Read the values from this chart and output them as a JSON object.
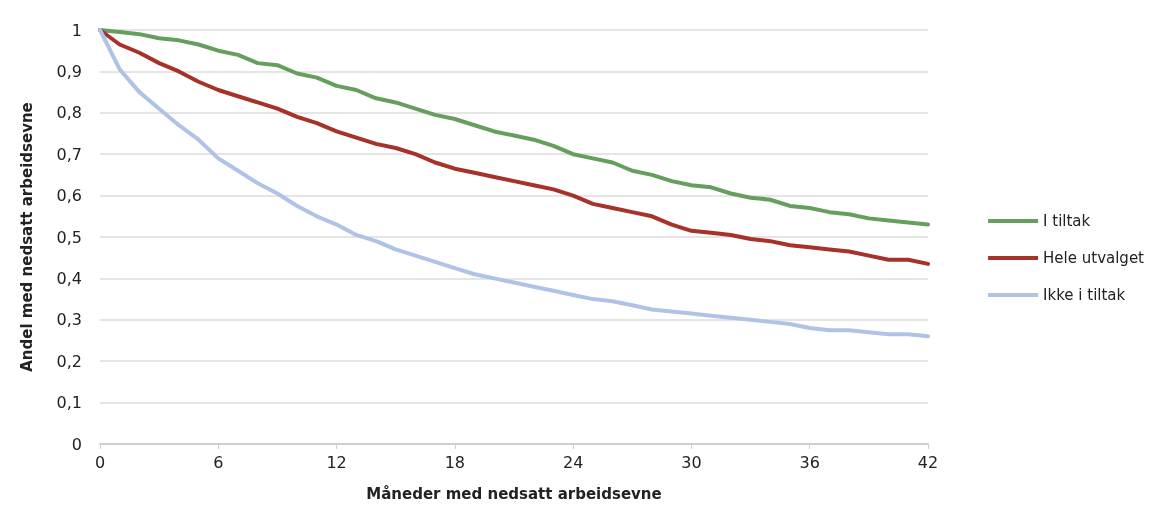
{
  "chart_data": {
    "type": "line",
    "xlabel": "Måneder med nedsatt arbeidsevne",
    "ylabel": "Andel med nedsatt arbeidsevne",
    "x": [
      0,
      1,
      2,
      3,
      4,
      5,
      6,
      7,
      8,
      9,
      10,
      11,
      12,
      13,
      14,
      15,
      16,
      17,
      18,
      19,
      20,
      21,
      22,
      23,
      24,
      25,
      26,
      27,
      28,
      29,
      30,
      31,
      32,
      33,
      34,
      35,
      36,
      37,
      38,
      39,
      40,
      41,
      42
    ],
    "series": [
      {
        "name": "I tiltak",
        "color": "#659e5d",
        "values": [
          1,
          0.995,
          0.99,
          0.98,
          0.975,
          0.965,
          0.95,
          0.94,
          0.92,
          0.915,
          0.895,
          0.885,
          0.865,
          0.855,
          0.835,
          0.825,
          0.81,
          0.795,
          0.785,
          0.77,
          0.755,
          0.745,
          0.735,
          0.72,
          0.7,
          0.69,
          0.68,
          0.66,
          0.65,
          0.635,
          0.625,
          0.62,
          0.605,
          0.595,
          0.59,
          0.575,
          0.57,
          0.56,
          0.555,
          0.545,
          0.54,
          0.535,
          0.53
        ]
      },
      {
        "name": "Hele utvalget",
        "color": "#a6322a",
        "values": [
          1,
          0.965,
          0.945,
          0.92,
          0.9,
          0.875,
          0.855,
          0.84,
          0.825,
          0.81,
          0.79,
          0.775,
          0.755,
          0.74,
          0.725,
          0.715,
          0.7,
          0.68,
          0.665,
          0.655,
          0.645,
          0.635,
          0.625,
          0.615,
          0.6,
          0.58,
          0.57,
          0.56,
          0.55,
          0.53,
          0.515,
          0.51,
          0.505,
          0.495,
          0.49,
          0.48,
          0.475,
          0.47,
          0.465,
          0.455,
          0.445,
          0.445,
          0.435
        ]
      },
      {
        "name": "Ikke i tiltak",
        "color": "#afc3e6",
        "values": [
          1,
          0.905,
          0.85,
          0.81,
          0.77,
          0.735,
          0.69,
          0.66,
          0.63,
          0.605,
          0.575,
          0.55,
          0.53,
          0.505,
          0.49,
          0.47,
          0.455,
          0.44,
          0.425,
          0.41,
          0.4,
          0.39,
          0.38,
          0.37,
          0.36,
          0.35,
          0.345,
          0.335,
          0.325,
          0.32,
          0.315,
          0.31,
          0.305,
          0.3,
          0.295,
          0.29,
          0.28,
          0.275,
          0.275,
          0.27,
          0.265,
          0.265,
          0.26
        ]
      }
    ],
    "xlim": [
      0,
      42
    ],
    "xticks": [
      0,
      6,
      12,
      18,
      24,
      30,
      36,
      42
    ],
    "ylim": [
      0,
      1
    ],
    "yticks": [
      0,
      {
        "value": 0.1,
        "label": "0,1"
      },
      {
        "value": 0.2,
        "label": "0,2"
      },
      {
        "value": 0.3,
        "label": "0,3"
      },
      {
        "value": 0.4,
        "label": "0,4"
      },
      {
        "value": 0.5,
        "label": "0,5"
      },
      {
        "value": 0.6,
        "label": "0,6"
      },
      {
        "value": 0.7,
        "label": "0,7"
      },
      {
        "value": 0.8,
        "label": "0,8"
      },
      {
        "value": 0.9,
        "label": "0,9"
      },
      1
    ],
    "grid": "y",
    "legend": "right",
    "marker": "none",
    "line_style": "solid"
  }
}
